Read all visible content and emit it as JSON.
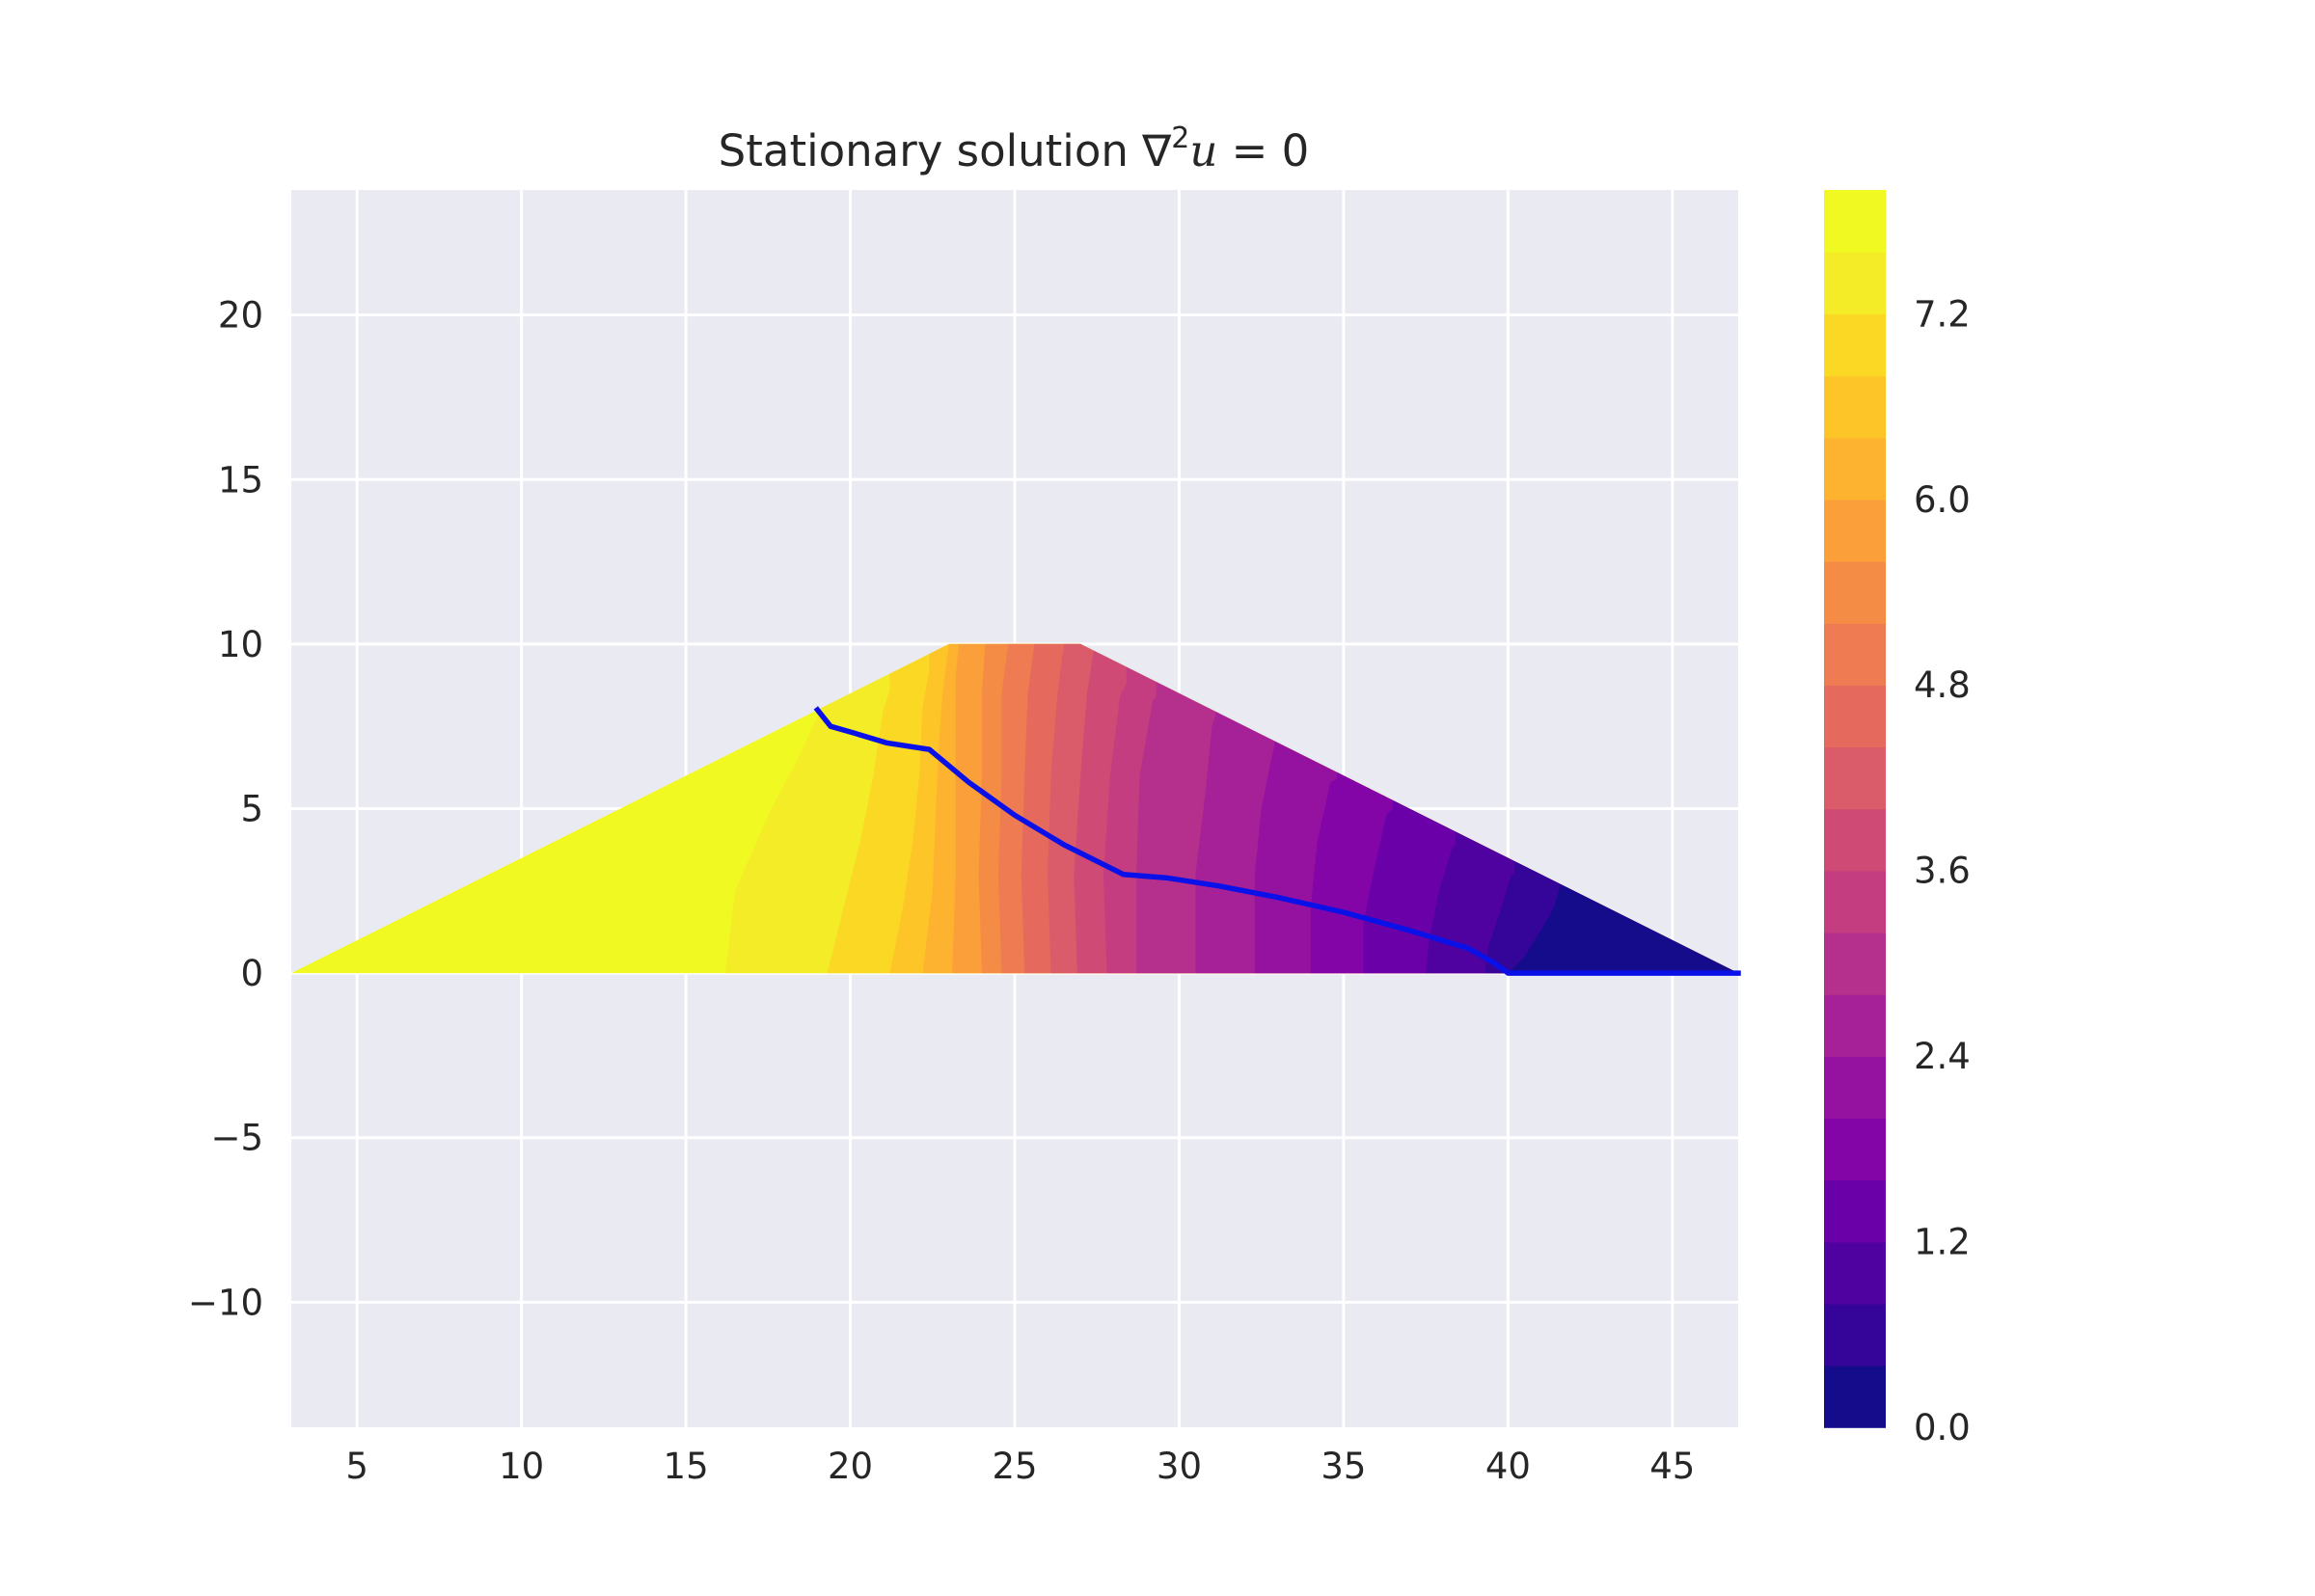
{
  "chart_data": {
    "type": "contour",
    "title": {
      "prefix": "Stationary solution ",
      "nabla": "∇",
      "power": "2",
      "variable": "u",
      "suffix": " = 0"
    },
    "xlabel": "",
    "ylabel": "",
    "xlim": [
      3,
      47
    ],
    "ylim": [
      -13.8,
      23.8
    ],
    "x_ticks": [
      5,
      10,
      15,
      20,
      25,
      30,
      35,
      40,
      45
    ],
    "x_tick_labels": [
      "5",
      "10",
      "15",
      "20",
      "25",
      "30",
      "35",
      "40",
      "45"
    ],
    "y_ticks": [
      20,
      15,
      10,
      5,
      0,
      -5,
      -10
    ],
    "y_tick_labels": [
      "20",
      "15",
      "10",
      "5",
      "0",
      "−5",
      "−10"
    ],
    "grid": true,
    "background": "#eaeaf2",
    "domain_polygon": [
      [
        3,
        0
      ],
      [
        23,
        10
      ],
      [
        27,
        10
      ],
      [
        47,
        0
      ]
    ],
    "field": {
      "vmin": 0.0,
      "vmax": 8.0,
      "levels": 20,
      "colormap": "plasma",
      "level_colors": [
        "#150c8c",
        "#350498",
        "#5002a1",
        "#6a00a8",
        "#8305a7",
        "#9512a1",
        "#a62098",
        "#b52f8c",
        "#c33d80",
        "#cf4a74",
        "#da5b6a",
        "#e56a5d",
        "#ee7b51",
        "#f58c46",
        "#fb9f3a",
        "#fdb32f",
        "#fdc527",
        "#fad824",
        "#f3ec26",
        "#f0f921"
      ],
      "contours": [
        {
          "value": 7.6,
          "points": [
            [
              16.2,
              0
            ],
            [
              16.5,
              2.5
            ],
            [
              17.6,
              5
            ],
            [
              18.4,
              6.5
            ],
            [
              19.1,
              8
            ]
          ]
        },
        {
          "value": 7.2,
          "points": [
            [
              19.3,
              0
            ],
            [
              19.8,
              2
            ],
            [
              20.3,
              4
            ],
            [
              20.7,
              6
            ],
            [
              21.0,
              8
            ],
            [
              21.2,
              8.6
            ]
          ]
        },
        {
          "value": 6.8,
          "points": [
            [
              21.2,
              0
            ],
            [
              21.6,
              2
            ],
            [
              21.9,
              4
            ],
            [
              22.1,
              6
            ],
            [
              22.2,
              8.1
            ],
            [
              22.4,
              9.2
            ]
          ]
        },
        {
          "value": 6.4,
          "points": [
            [
              22.2,
              0
            ],
            [
              22.5,
              2.5
            ],
            [
              22.6,
              5
            ],
            [
              22.7,
              7
            ],
            [
              22.8,
              8.5
            ],
            [
              23.0,
              10
            ]
          ]
        },
        {
          "value": 6.0,
          "points": [
            [
              23.1,
              0
            ],
            [
              23.2,
              3
            ],
            [
              23.2,
              6
            ],
            [
              23.2,
              9
            ],
            [
              23.3,
              10
            ]
          ]
        },
        {
          "value": 5.6,
          "points": [
            [
              24.0,
              0
            ],
            [
              23.9,
              3
            ],
            [
              24.0,
              6
            ],
            [
              24.0,
              8.5
            ],
            [
              24.1,
              10
            ]
          ]
        },
        {
          "value": 5.2,
          "points": [
            [
              24.6,
              0
            ],
            [
              24.5,
              3
            ],
            [
              24.6,
              6
            ],
            [
              24.6,
              8.5
            ],
            [
              24.8,
              10
            ]
          ]
        },
        {
          "value": 4.8,
          "points": [
            [
              25.3,
              0
            ],
            [
              25.2,
              3
            ],
            [
              25.3,
              6
            ],
            [
              25.4,
              8.5
            ],
            [
              25.6,
              10
            ]
          ]
        },
        {
          "value": 4.4,
          "points": [
            [
              26.1,
              0
            ],
            [
              26.0,
              3
            ],
            [
              26.1,
              6
            ],
            [
              26.3,
              8.5
            ],
            [
              26.5,
              10
            ]
          ]
        },
        {
          "value": 4.0,
          "points": [
            [
              26.9,
              0
            ],
            [
              26.8,
              3
            ],
            [
              27.0,
              6
            ],
            [
              27.2,
              8.5
            ],
            [
              27.4,
              9.8
            ]
          ]
        },
        {
          "value": 3.6,
          "points": [
            [
              27.8,
              0
            ],
            [
              27.7,
              3
            ],
            [
              27.9,
              6
            ],
            [
              28.2,
              8.4
            ],
            [
              28.4,
              8.8
            ]
          ]
        },
        {
          "value": 3.2,
          "points": [
            [
              28.7,
              0
            ],
            [
              28.7,
              3
            ],
            [
              28.8,
              6
            ],
            [
              29.2,
              8.3
            ],
            [
              29.3,
              8.4
            ]
          ]
        },
        {
          "value": 2.8,
          "points": [
            [
              30.5,
              0
            ],
            [
              30.5,
              3
            ],
            [
              30.8,
              5.5
            ],
            [
              31.0,
              7.5
            ],
            [
              31.1,
              7.8
            ]
          ]
        },
        {
          "value": 2.4,
          "points": [
            [
              32.3,
              0
            ],
            [
              32.3,
              3
            ],
            [
              32.5,
              5
            ],
            [
              32.8,
              6.5
            ],
            [
              32.9,
              6.9
            ]
          ]
        },
        {
          "value": 2.0,
          "points": [
            [
              34.0,
              0
            ],
            [
              34.0,
              2
            ],
            [
              34.2,
              4
            ],
            [
              34.6,
              5.8
            ],
            [
              34.8,
              5.9
            ]
          ]
        },
        {
          "value": 1.6,
          "points": [
            [
              35.6,
              0
            ],
            [
              35.6,
              1.5
            ],
            [
              35.9,
              3
            ],
            [
              36.3,
              4.8
            ],
            [
              36.5,
              5.0
            ]
          ]
        },
        {
          "value": 1.2,
          "points": [
            [
              37.5,
              0
            ],
            [
              37.6,
              1
            ],
            [
              37.9,
              2.5
            ],
            [
              38.3,
              3.8
            ],
            [
              38.4,
              3.9
            ]
          ]
        },
        {
          "value": 0.8,
          "points": [
            [
              39.3,
              0
            ],
            [
              39.4,
              0.8
            ],
            [
              39.8,
              2
            ],
            [
              40.1,
              3.0
            ],
            [
              40.2,
              3.0
            ]
          ]
        },
        {
          "value": 0.4,
          "points": [
            [
              40.0,
              0
            ],
            [
              40.5,
              0.5
            ],
            [
              41.0,
              1.3
            ],
            [
              41.4,
              2.0
            ],
            [
              41.6,
              2.7
            ],
            [
              41.7,
              2.8
            ]
          ]
        }
      ]
    },
    "series": [
      {
        "type": "line",
        "color": "#0a11e8",
        "x": [
          19.0,
          19.4,
          20.1,
          21.1,
          22.4,
          23.6,
          25.0,
          26.5,
          28.3,
          29.6,
          31.2,
          33.0,
          35.0,
          37.0,
          38.8,
          39.6,
          40.0,
          47.0
        ],
        "y": [
          8.0,
          7.5,
          7.3,
          7.0,
          6.8,
          5.8,
          4.8,
          3.9,
          3.0,
          2.9,
          2.65,
          2.3,
          1.85,
          1.3,
          0.75,
          0.3,
          0.0,
          0.0
        ]
      }
    ],
    "colorbar": {
      "ticks": [
        0.0,
        1.2,
        2.4,
        3.6,
        4.8,
        6.0,
        7.2
      ],
      "tick_labels": [
        "0.0",
        "1.2",
        "2.4",
        "3.6",
        "4.8",
        "6.0",
        "7.2"
      ]
    }
  }
}
